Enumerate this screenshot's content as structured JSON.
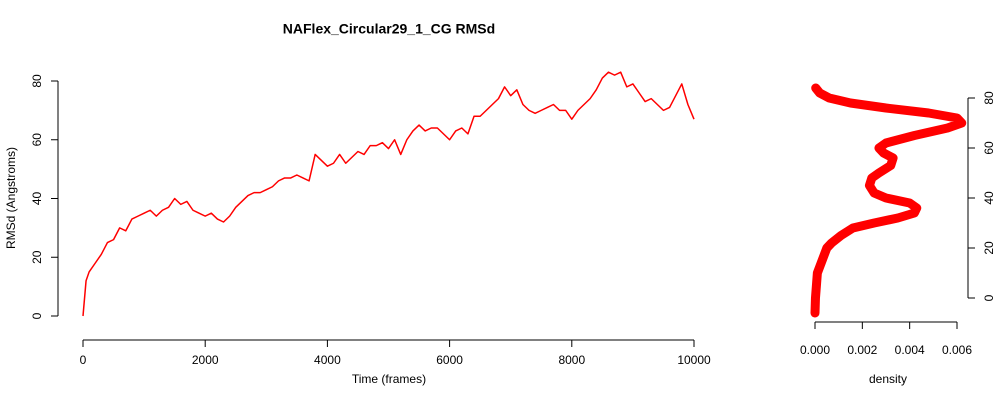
{
  "chart_data": [
    {
      "type": "line",
      "title": "NAFlex_Circular29_1_CG RMSd",
      "x_label": "Time (frames)",
      "y_label": "RMSd (Angstroms)",
      "x": [
        0,
        50,
        100,
        200,
        300,
        400,
        500,
        600,
        700,
        800,
        900,
        1000,
        1100,
        1200,
        1300,
        1400,
        1500,
        1600,
        1700,
        1800,
        1900,
        2000,
        2100,
        2200,
        2300,
        2400,
        2500,
        2600,
        2700,
        2800,
        2900,
        3000,
        3100,
        3200,
        3300,
        3400,
        3500,
        3600,
        3700,
        3800,
        3900,
        4000,
        4100,
        4200,
        4300,
        4400,
        4500,
        4600,
        4700,
        4800,
        4900,
        5000,
        5100,
        5200,
        5300,
        5400,
        5500,
        5600,
        5700,
        5800,
        5900,
        6000,
        6100,
        6200,
        6300,
        6400,
        6500,
        6600,
        6700,
        6800,
        6900,
        7000,
        7100,
        7200,
        7300,
        7400,
        7500,
        7600,
        7700,
        7800,
        7900,
        8000,
        8100,
        8200,
        8300,
        8400,
        8500,
        8600,
        8700,
        8800,
        8900,
        9000,
        9100,
        9200,
        9300,
        9400,
        9500,
        9600,
        9700,
        9800,
        9900,
        10000
      ],
      "values": [
        0,
        12,
        15,
        18,
        21,
        25,
        26,
        30,
        29,
        33,
        34,
        35,
        36,
        34,
        36,
        37,
        40,
        38,
        39,
        36,
        35,
        34,
        35,
        33,
        32,
        34,
        37,
        39,
        41,
        42,
        42,
        43,
        44,
        46,
        47,
        47,
        48,
        47,
        46,
        55,
        53,
        51,
        52,
        55,
        52,
        54,
        56,
        55,
        58,
        58,
        59,
        57,
        60,
        55,
        60,
        63,
        65,
        63,
        64,
        64,
        62,
        60,
        63,
        64,
        62,
        68,
        68,
        70,
        72,
        74,
        78,
        75,
        77,
        72,
        70,
        69,
        70,
        71,
        72,
        70,
        70,
        67,
        70,
        72,
        74,
        77,
        81,
        83,
        82,
        83,
        78,
        79,
        76,
        73,
        74,
        72,
        70,
        71,
        75,
        79,
        72,
        67
      ],
      "color": "#ff0000",
      "xlim": [
        0,
        10000
      ],
      "xticks": [
        0,
        2000,
        4000,
        6000,
        8000,
        10000
      ],
      "ylim": [
        0,
        80
      ],
      "yticks": [
        0,
        20,
        40,
        60,
        80
      ]
    },
    {
      "type": "density",
      "x_label": "density",
      "x": [
        0,
        2e-05,
        0.0001,
        0.0003,
        0.0005,
        0.0007,
        0.0011,
        0.0016,
        0.0025,
        0.0035,
        0.0042,
        0.0043,
        0.004,
        0.003,
        0.0025,
        0.0023,
        0.0024,
        0.0027,
        0.0032,
        0.0033,
        0.0029,
        0.0027,
        0.003,
        0.0042,
        0.0056,
        0.0062,
        0.006,
        0.0048,
        0.003,
        0.0015,
        0.0006,
        0.0002,
        3e-05
      ],
      "values": [
        -6,
        0,
        10,
        15,
        20,
        22,
        25,
        28,
        30,
        32,
        34,
        36,
        38,
        40,
        42,
        45,
        48,
        50,
        53,
        56,
        58,
        60,
        62,
        65,
        68,
        70,
        72,
        74,
        76,
        78,
        80,
        82,
        84
      ],
      "color": "#ff0000",
      "xlim": [
        0,
        0.006
      ],
      "xticks": [
        {
          "value": 0,
          "label": "0.000"
        },
        {
          "value": 0.002,
          "label": "0.002"
        },
        {
          "value": 0.004,
          "label": "0.004"
        },
        {
          "value": 0.006,
          "label": "0.006"
        }
      ],
      "ylim": [
        0,
        80
      ],
      "yticks": [
        0,
        20,
        40,
        60,
        80
      ]
    }
  ]
}
